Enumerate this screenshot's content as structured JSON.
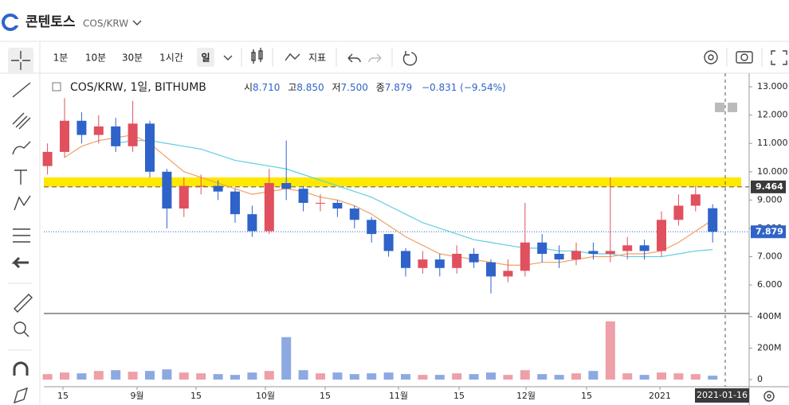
{
  "header": {
    "title": "콘텐토스",
    "pair": "COS/KRW"
  },
  "toolbar": {
    "intervals": [
      "1분",
      "10분",
      "30분",
      "1시간",
      "일"
    ],
    "indicators": "지표"
  },
  "legend": {
    "symbol": "COS/KRW, 1일, BITHUMB",
    "open_label": "시",
    "open": "8.710",
    "high_label": "고",
    "high": "8.850",
    "low_label": "저",
    "low": "7.500",
    "close_label": "종",
    "close": "7.879",
    "change": "−0.831 (−9.54%)"
  },
  "chart_data": {
    "type": "candlestick",
    "open": [
      10.2,
      10.7,
      11.8,
      11.3,
      11.6,
      10.9,
      11.7,
      10.0,
      8.7,
      9.5,
      9.5,
      9.3,
      8.5,
      7.9,
      9.6,
      9.4,
      8.9,
      8.9,
      8.7,
      8.3,
      7.8,
      7.2,
      6.6,
      6.9,
      6.6,
      7.1,
      6.8,
      6.3,
      6.5,
      7.5,
      7.1,
      6.9,
      7.2,
      7.1,
      7.2,
      7.4,
      7.2,
      8.3,
      8.8,
      8.71
    ],
    "high": [
      11.0,
      12.6,
      12.1,
      12.0,
      11.9,
      12.5,
      11.8,
      10.1,
      9.8,
      9.9,
      9.7,
      9.4,
      8.8,
      10.1,
      11.1,
      9.5,
      9.2,
      9.0,
      8.8,
      8.4,
      7.8,
      7.3,
      7.2,
      7.1,
      7.4,
      7.3,
      6.9,
      6.9,
      8.9,
      7.8,
      7.4,
      7.5,
      7.5,
      9.8,
      7.7,
      7.6,
      8.6,
      9.2,
      9.5,
      8.85
    ],
    "low": [
      9.9,
      10.5,
      11.0,
      11.0,
      10.7,
      10.7,
      9.8,
      8.0,
      8.4,
      9.2,
      9.0,
      8.2,
      7.7,
      7.8,
      9.0,
      8.6,
      8.6,
      8.4,
      8.0,
      7.5,
      7.0,
      6.3,
      6.4,
      6.3,
      6.4,
      6.6,
      5.7,
      6.1,
      6.3,
      6.8,
      6.6,
      6.7,
      6.9,
      6.8,
      6.9,
      6.9,
      7.0,
      8.1,
      8.6,
      7.5
    ],
    "close": [
      10.7,
      11.8,
      11.3,
      11.6,
      10.9,
      11.7,
      10.0,
      8.7,
      9.5,
      9.5,
      9.3,
      8.5,
      7.9,
      9.6,
      9.4,
      8.9,
      8.9,
      8.7,
      8.3,
      7.8,
      7.2,
      6.6,
      6.9,
      6.6,
      7.1,
      6.8,
      6.3,
      6.5,
      7.5,
      7.1,
      6.9,
      7.2,
      7.1,
      7.2,
      7.4,
      7.2,
      8.3,
      8.8,
      9.2,
      7.879
    ],
    "volume": [
      35,
      45,
      40,
      55,
      60,
      50,
      55,
      65,
      45,
      40,
      35,
      30,
      45,
      55,
      270,
      60,
      40,
      45,
      35,
      40,
      45,
      35,
      30,
      30,
      40,
      35,
      45,
      30,
      60,
      35,
      30,
      40,
      55,
      370,
      40,
      30,
      45,
      40,
      35,
      25
    ],
    "ma_short": [
      null,
      10.5,
      10.9,
      11.1,
      11.2,
      11.3,
      11.0,
      10.5,
      10.0,
      9.8,
      9.6,
      9.4,
      9.2,
      9.3,
      9.4,
      9.3,
      9.1,
      9.0,
      8.8,
      8.5,
      8.1,
      7.7,
      7.4,
      7.1,
      7.0,
      6.9,
      6.8,
      6.7,
      6.7,
      6.8,
      6.8,
      6.9,
      7.0,
      7.0,
      7.1,
      7.1,
      7.2,
      7.5,
      7.9,
      8.3
    ],
    "ma_long": [
      null,
      null,
      null,
      null,
      11.0,
      11.1,
      11.1,
      11.0,
      10.9,
      10.8,
      10.6,
      10.4,
      10.3,
      10.2,
      10.1,
      9.9,
      9.7,
      9.5,
      9.3,
      9.1,
      8.8,
      8.5,
      8.2,
      8.0,
      7.8,
      7.6,
      7.5,
      7.4,
      7.3,
      7.3,
      7.2,
      7.2,
      7.1,
      7.1,
      7.0,
      7.0,
      7.0,
      7.1,
      7.2,
      7.25
    ],
    "up_color": "#e0505e",
    "down_color": "#2f63c9",
    "ma_short_color": "#f0a060",
    "ma_long_color": "#5fcfe0",
    "ylim": [
      5.02,
      13.48
    ],
    "yticks": [
      {
        "value": 6,
        "label": "6.000"
      },
      {
        "value": 7,
        "label": "7.000"
      },
      {
        "value": 8,
        "label": "8.000"
      },
      {
        "value": 9,
        "label": "9.000"
      },
      {
        "value": 10,
        "label": "10.000"
      },
      {
        "value": 11,
        "label": "11.000"
      },
      {
        "value": 12,
        "label": "12.000"
      },
      {
        "value": 13,
        "label": "13.000"
      }
    ],
    "y2lim": [
      -40,
      415
    ],
    "y2ticks": [
      0,
      {
        "value": 200,
        "label": "200M"
      },
      {
        "value": 400,
        "label": "400M"
      }
    ],
    "xtick_labels": [
      "15",
      "9월",
      "15",
      "10월",
      "15",
      "11월",
      "15",
      "12월",
      "15",
      "2021"
    ],
    "current_date": "2021-01-16",
    "zone": [
      9.47,
      9.8
    ],
    "resistance": 9.464,
    "last_price": 7.879
  }
}
